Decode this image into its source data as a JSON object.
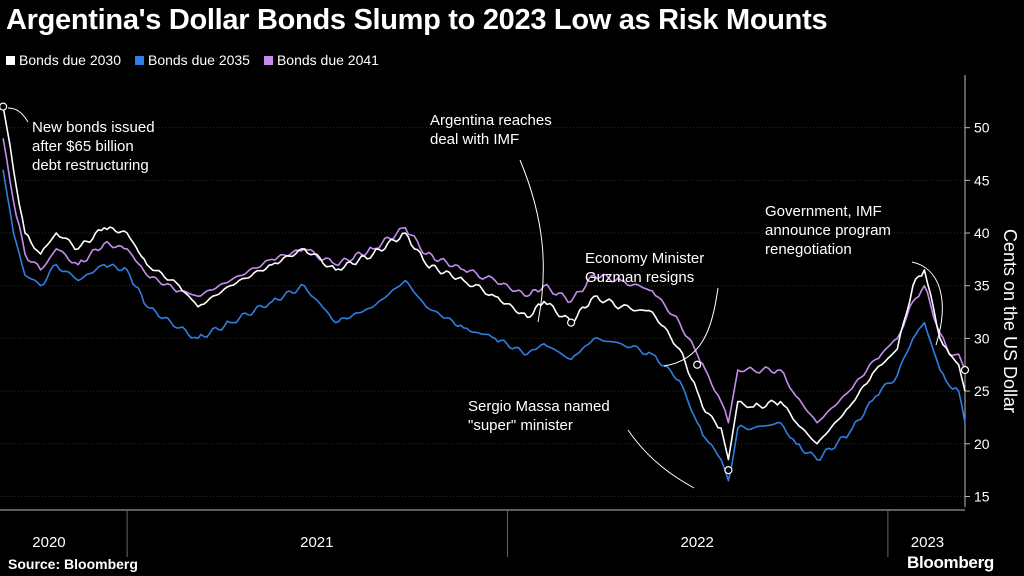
{
  "title": "Argentina's Dollar Bonds Slump to 2023 Low as Risk Mounts",
  "source": "Source: Bloomberg",
  "brand": "Bloomberg",
  "colors": {
    "s2030": "#ffffff",
    "s2035": "#2f7fe0",
    "s2041": "#c58cf0"
  },
  "chart_data": {
    "type": "line",
    "ylabel": "Cents on the US Dollar",
    "ylim": [
      14,
      55
    ],
    "y_ticks": [
      15,
      20,
      25,
      30,
      35,
      40,
      45,
      50
    ],
    "x_ticks": [
      "2020",
      "2021",
      "2022",
      "2023"
    ],
    "xlim": [
      "2020-09-01",
      "2023-03-16"
    ],
    "series": [
      {
        "name": "Bonds due 2030",
        "color": "#ffffff",
        "points": [
          [
            "2020-09-04",
            52
          ],
          [
            "2020-09-14",
            46
          ],
          [
            "2020-09-25",
            40
          ],
          [
            "2020-10-10",
            38
          ],
          [
            "2020-10-25",
            40
          ],
          [
            "2020-11-15",
            38.5
          ],
          [
            "2020-12-10",
            40.5
          ],
          [
            "2021-01-01",
            40
          ],
          [
            "2021-01-20",
            37
          ],
          [
            "2021-02-20",
            35
          ],
          [
            "2021-03-10",
            33
          ],
          [
            "2021-04-10",
            35
          ],
          [
            "2021-05-20",
            37
          ],
          [
            "2021-06-20",
            38.5
          ],
          [
            "2021-07-20",
            36.5
          ],
          [
            "2021-08-25",
            38
          ],
          [
            "2021-09-25",
            40
          ],
          [
            "2021-10-15",
            37
          ],
          [
            "2021-11-20",
            35.5
          ],
          [
            "2021-12-20",
            34
          ],
          [
            "2022-01-20",
            32
          ],
          [
            "2022-02-05",
            33.5
          ],
          [
            "2022-03-03",
            31.5
          ],
          [
            "2022-03-25",
            34
          ],
          [
            "2022-04-20",
            33
          ],
          [
            "2022-05-20",
            32.5
          ],
          [
            "2022-06-15",
            29
          ],
          [
            "2022-07-02",
            25
          ],
          [
            "2022-07-10",
            23
          ],
          [
            "2022-07-25",
            21.5
          ],
          [
            "2022-08-01",
            18.5
          ],
          [
            "2022-08-10",
            24
          ],
          [
            "2022-08-25",
            23.5
          ],
          [
            "2022-09-20",
            24
          ],
          [
            "2022-10-05",
            22
          ],
          [
            "2022-10-25",
            20
          ],
          [
            "2022-11-25",
            23.5
          ],
          [
            "2022-12-20",
            27
          ],
          [
            "2023-01-10",
            29
          ],
          [
            "2023-01-25",
            35
          ],
          [
            "2023-02-05",
            36.5
          ],
          [
            "2023-02-20",
            30
          ],
          [
            "2023-03-01",
            28.5
          ],
          [
            "2023-03-10",
            27.5
          ],
          [
            "2023-03-16",
            25
          ]
        ]
      },
      {
        "name": "Bonds due 2035",
        "color": "#2f7fe0",
        "points": [
          [
            "2020-09-04",
            46
          ],
          [
            "2020-09-14",
            40
          ],
          [
            "2020-09-25",
            36
          ],
          [
            "2020-10-10",
            35
          ],
          [
            "2020-10-25",
            37
          ],
          [
            "2020-11-15",
            35.5
          ],
          [
            "2020-12-10",
            37
          ],
          [
            "2021-01-01",
            36.5
          ],
          [
            "2021-01-20",
            33
          ],
          [
            "2021-02-20",
            31
          ],
          [
            "2021-03-10",
            30
          ],
          [
            "2021-04-10",
            31.5
          ],
          [
            "2021-05-20",
            33.5
          ],
          [
            "2021-06-20",
            35
          ],
          [
            "2021-07-20",
            31.5
          ],
          [
            "2021-08-25",
            33
          ],
          [
            "2021-09-25",
            35.5
          ],
          [
            "2021-10-15",
            33
          ],
          [
            "2021-11-20",
            31
          ],
          [
            "2021-12-20",
            30
          ],
          [
            "2022-01-20",
            28.5
          ],
          [
            "2022-02-05",
            29.5
          ],
          [
            "2022-03-03",
            28
          ],
          [
            "2022-03-25",
            30
          ],
          [
            "2022-04-20",
            29.5
          ],
          [
            "2022-05-20",
            28.5
          ],
          [
            "2022-06-15",
            26
          ],
          [
            "2022-07-02",
            22
          ],
          [
            "2022-07-10",
            20.5
          ],
          [
            "2022-07-25",
            18.5
          ],
          [
            "2022-08-01",
            16.5
          ],
          [
            "2022-08-10",
            21.5
          ],
          [
            "2022-08-25",
            21.5
          ],
          [
            "2022-09-20",
            22
          ],
          [
            "2022-10-05",
            20
          ],
          [
            "2022-10-25",
            18.5
          ],
          [
            "2022-11-25",
            21
          ],
          [
            "2022-12-20",
            24.5
          ],
          [
            "2023-01-10",
            26.5
          ],
          [
            "2023-01-25",
            30
          ],
          [
            "2023-02-05",
            31.5
          ],
          [
            "2023-02-20",
            27
          ],
          [
            "2023-03-01",
            25.5
          ],
          [
            "2023-03-10",
            25
          ],
          [
            "2023-03-16",
            22
          ]
        ]
      },
      {
        "name": "Bonds due 2041",
        "color": "#c58cf0",
        "points": [
          [
            "2020-09-04",
            49
          ],
          [
            "2020-09-14",
            43
          ],
          [
            "2020-09-25",
            38
          ],
          [
            "2020-10-10",
            36.5
          ],
          [
            "2020-10-25",
            38.5
          ],
          [
            "2020-11-15",
            37
          ],
          [
            "2020-12-10",
            39
          ],
          [
            "2021-01-01",
            38.5
          ],
          [
            "2021-01-20",
            36
          ],
          [
            "2021-02-20",
            34.5
          ],
          [
            "2021-03-10",
            34
          ],
          [
            "2021-04-10",
            35.5
          ],
          [
            "2021-05-20",
            37.5
          ],
          [
            "2021-06-20",
            38.5
          ],
          [
            "2021-07-20",
            37
          ],
          [
            "2021-08-25",
            38.5
          ],
          [
            "2021-09-25",
            40.5
          ],
          [
            "2021-10-15",
            38
          ],
          [
            "2021-11-20",
            36.5
          ],
          [
            "2021-12-20",
            35.5
          ],
          [
            "2022-01-20",
            34
          ],
          [
            "2022-02-05",
            35
          ],
          [
            "2022-03-03",
            33.5
          ],
          [
            "2022-03-25",
            36
          ],
          [
            "2022-04-20",
            35.5
          ],
          [
            "2022-05-20",
            34.5
          ],
          [
            "2022-06-15",
            31.5
          ],
          [
            "2022-07-02",
            28.5
          ],
          [
            "2022-07-10",
            27
          ],
          [
            "2022-07-25",
            24
          ],
          [
            "2022-08-01",
            22
          ],
          [
            "2022-08-10",
            27
          ],
          [
            "2022-08-25",
            27
          ],
          [
            "2022-09-20",
            27
          ],
          [
            "2022-10-05",
            24.5
          ],
          [
            "2022-10-25",
            22
          ],
          [
            "2022-11-25",
            25
          ],
          [
            "2022-12-20",
            28
          ],
          [
            "2023-01-10",
            30
          ],
          [
            "2023-01-25",
            33.5
          ],
          [
            "2023-02-05",
            35
          ],
          [
            "2023-02-20",
            30.5
          ],
          [
            "2023-03-01",
            28.5
          ],
          [
            "2023-03-10",
            28.5
          ],
          [
            "2023-03-16",
            27
          ]
        ]
      }
    ],
    "annotations": [
      {
        "text": [
          "New bonds issued",
          "after $65 billion",
          "debt restructuring"
        ],
        "date": "2020-09-04",
        "value": 52
      },
      {
        "text": [
          "Argentina reaches",
          "deal with IMF"
        ],
        "date": "2022-03-03",
        "value": 31.5
      },
      {
        "text": [
          "Economy Minister",
          "Guzman resigns"
        ],
        "date": "2022-07-02",
        "value": 27.5
      },
      {
        "text": [
          "Sergio Massa named",
          "\"super\" minister"
        ],
        "date": "2022-08-01",
        "value": 17.5
      },
      {
        "text": [
          "Government, IMF",
          "announce program",
          "renegotiation"
        ],
        "date": "2023-03-16",
        "value": 27
      }
    ]
  }
}
